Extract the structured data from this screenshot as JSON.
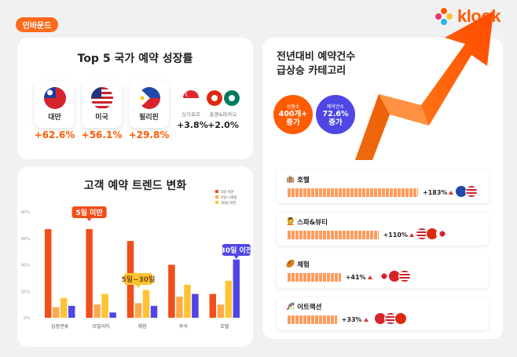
{
  "badge": "인바운드",
  "brand": {
    "name": "klook",
    "color": "#ff5b00"
  },
  "top5": {
    "title": "Top 5 국가 예약 성장률",
    "major": [
      {
        "flag": "taiwan-flag",
        "name": "대만",
        "pct": "+62.6%"
      },
      {
        "flag": "usa-flag",
        "name": "미국",
        "pct": "+56.1%"
      },
      {
        "flag": "philippines-flag",
        "name": "필리핀",
        "pct": "+29.8%"
      }
    ],
    "minor": [
      {
        "flag": "singapore-flag",
        "name": "싱가포르",
        "pct": "+3.8%"
      },
      {
        "flag": "hongkong-macau-flag",
        "name": "홍콩&마카오",
        "pct": "+2.0%"
      }
    ]
  },
  "trend": {
    "title": "고객 예약 트렌드 변화",
    "callouts": {
      "short": "5일 미만",
      "mid": "5일~30일",
      "long": "30일 이전"
    }
  },
  "chart_data": {
    "type": "bar",
    "title": "고객 예약 트렌드 변화",
    "categories": [
      "입장권류",
      "모빌리티",
      "체험",
      "투어",
      "호텔"
    ],
    "series": [
      {
        "name": "5일 미만",
        "color": "#f04e1a",
        "values": [
          67,
          67,
          58,
          40,
          18
        ]
      },
      {
        "name": "5일~30일",
        "color": "#ffa94d",
        "values": [
          8,
          10,
          11,
          16,
          10
        ]
      },
      {
        "name": "30일 이전",
        "color": "#ffc233",
        "values": [
          15,
          18,
          21,
          25,
          28
        ]
      },
      {
        "name": "",
        "color": "#5046e4",
        "values": [
          9,
          4,
          9,
          18,
          44
        ]
      }
    ],
    "ytick_labels": [
      "0%",
      "20%",
      "40%",
      "60%",
      "80%"
    ],
    "ylim": [
      0,
      80
    ],
    "legend": "top-right",
    "grid": false
  },
  "surge": {
    "title_line1": "전년대비 예약건수",
    "title_line2": "급상승 카테고리",
    "circles": [
      {
        "label": "상품수",
        "value1": "400개+",
        "value2": "증가",
        "color": "#ff5b00"
      },
      {
        "label": "예약건수",
        "value1": "72.6%",
        "value2": "증가",
        "color": "#5046e4"
      }
    ],
    "categories": [
      {
        "icon": "hotel-icon",
        "glyph": "🏨",
        "name": "호텔",
        "pct": "+183%",
        "bar": 1.0,
        "flags": [
          "philippines-flag",
          "usa-flag"
        ]
      },
      {
        "icon": "spa-icon",
        "glyph": "💆",
        "name": "스파&뷰티",
        "pct": "+110%",
        "bar": 0.6,
        "flags": [
          "usa-flag",
          "hongkong-flag",
          "japan-flag"
        ]
      },
      {
        "icon": "experience-icon",
        "glyph": "🏉",
        "name": "체험",
        "pct": "+41%",
        "bar": 0.22,
        "flags": [
          "japan-flag",
          "taiwan-flag",
          "usa-flag"
        ]
      },
      {
        "icon": "attraction-icon",
        "glyph": "🎢",
        "name": "어트랙션",
        "pct": "+33%",
        "bar": 0.18,
        "flags": [
          "taiwan-flag",
          "usa-flag",
          "hongkong-flag"
        ]
      }
    ]
  }
}
